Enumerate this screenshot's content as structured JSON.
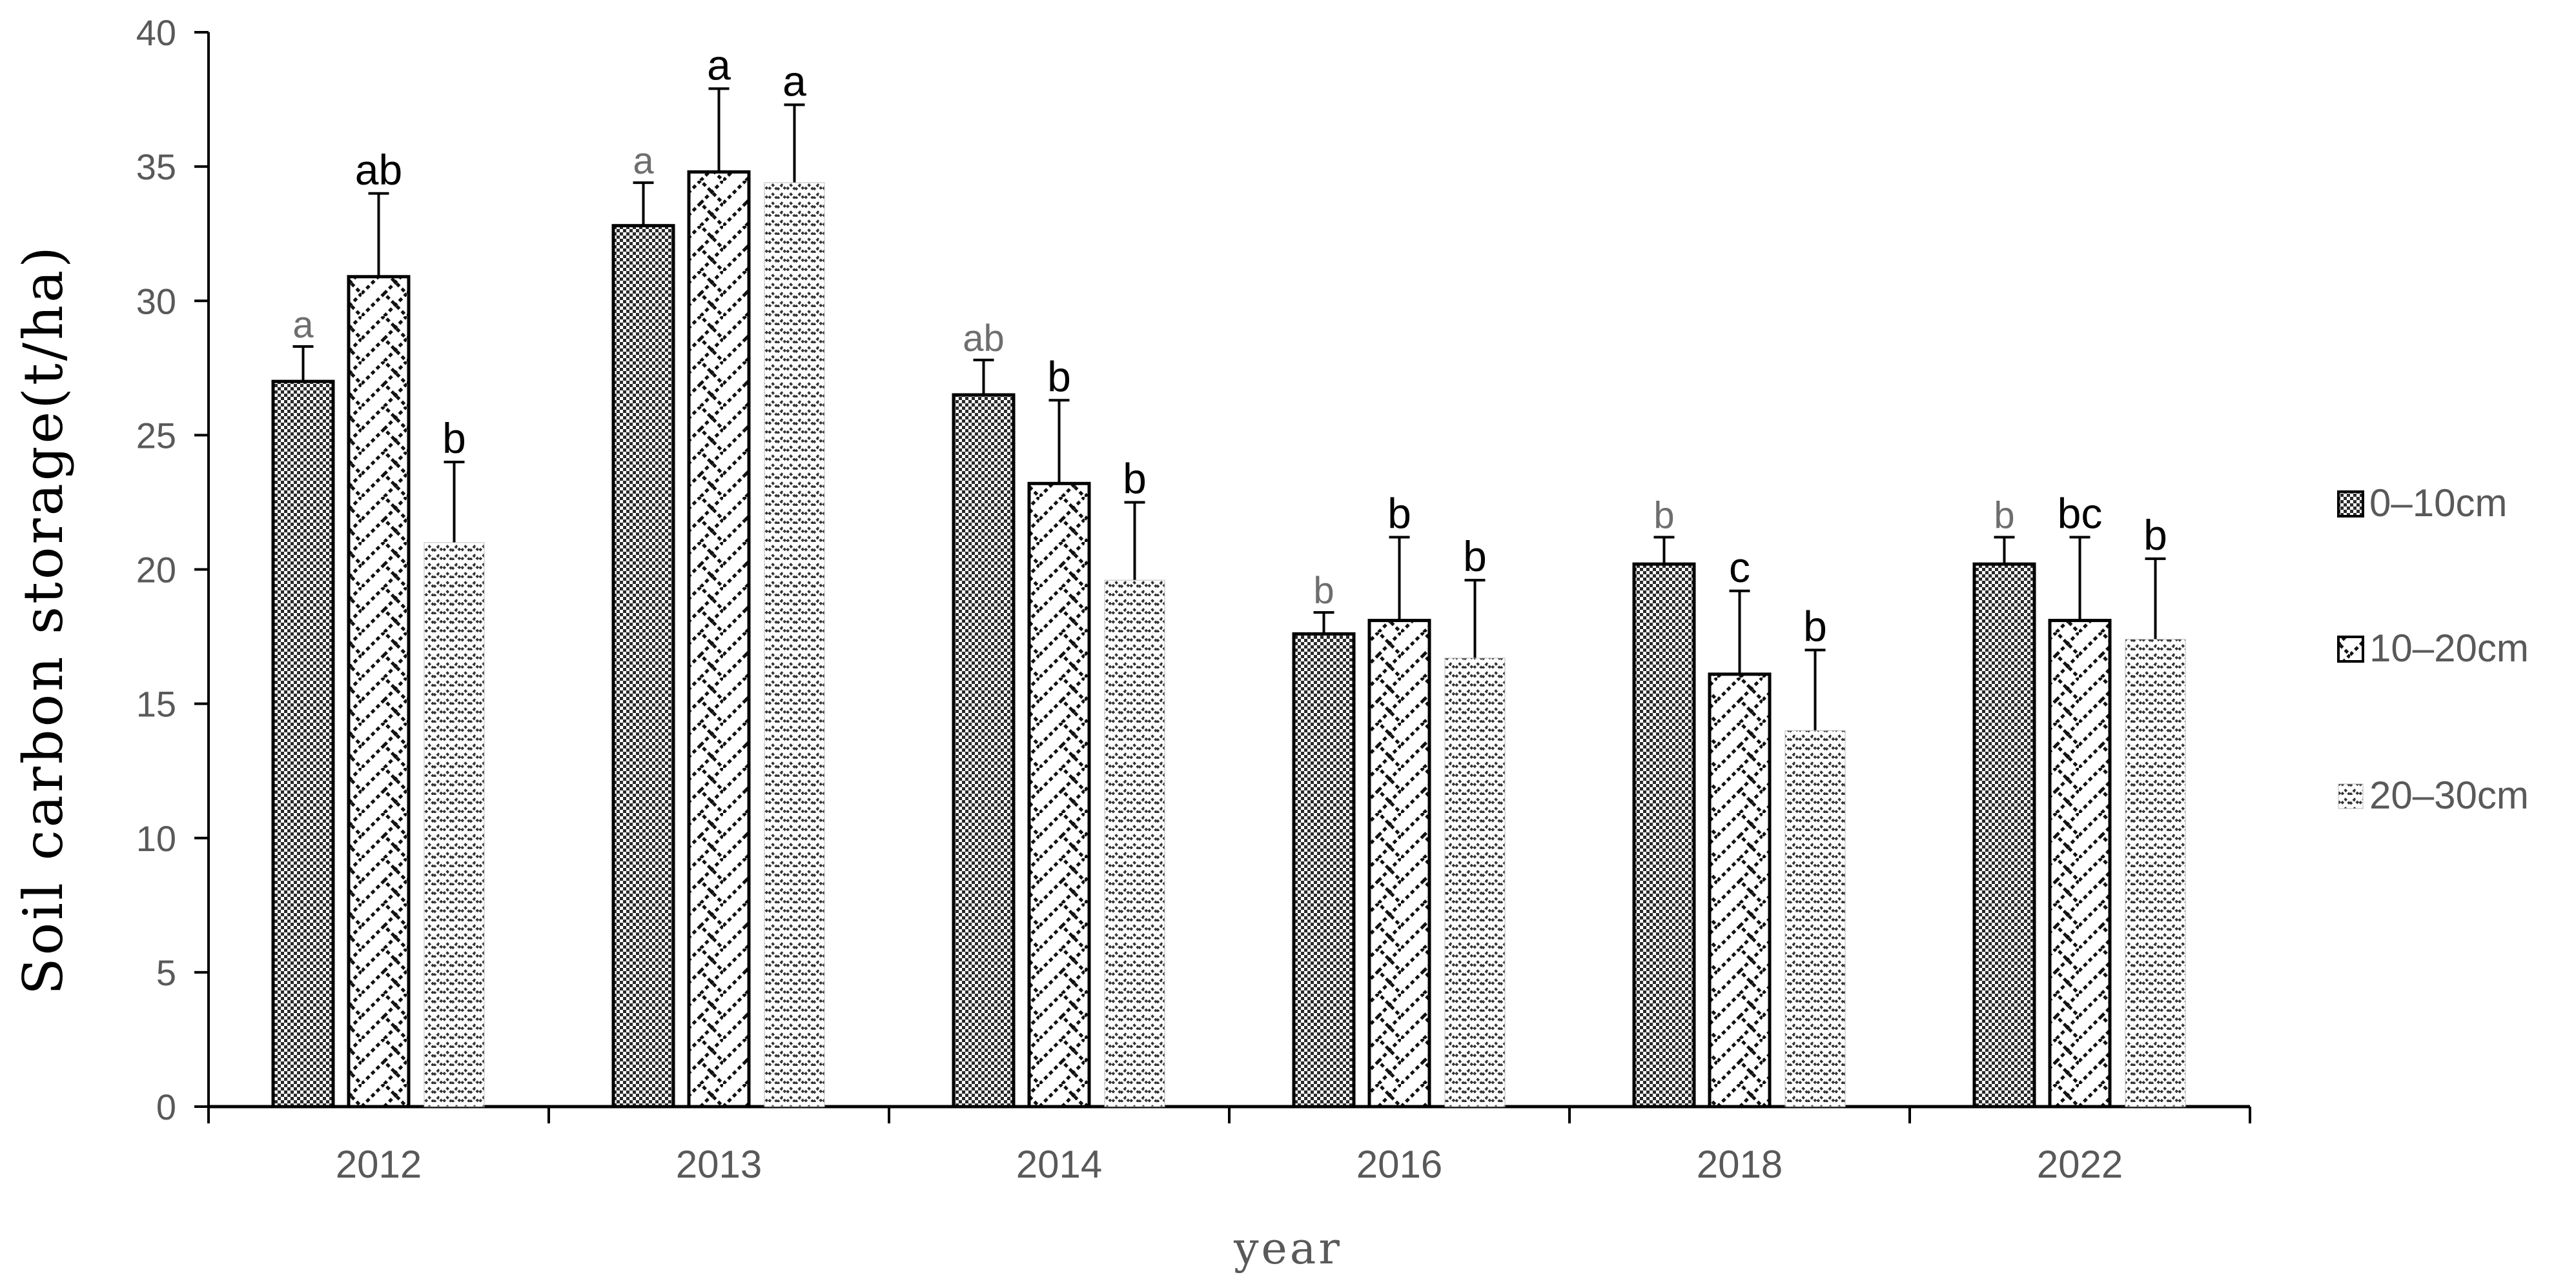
{
  "chart_data": {
    "type": "bar",
    "xlabel": "year",
    "ylabel": "Soil carbon storage(t/ha)",
    "ylim": [
      0,
      40
    ],
    "yticks": [
      0,
      5,
      10,
      15,
      20,
      25,
      30,
      35,
      40
    ],
    "grid": false,
    "legend_position": "right",
    "categories": [
      "2012",
      "2013",
      "2014",
      "2016",
      "2018",
      "2022"
    ],
    "series": [
      {
        "name": "0–10cm",
        "pattern": "dense-dots",
        "values": [
          27.0,
          32.8,
          26.5,
          17.6,
          20.2,
          20.2
        ],
        "errors": [
          1.3,
          1.6,
          1.3,
          0.8,
          1.0,
          1.0
        ],
        "labels": [
          "a",
          "a",
          "ab",
          "b",
          "b",
          "b"
        ]
      },
      {
        "name": "10–20cm",
        "pattern": "zigzag",
        "values": [
          30.9,
          34.8,
          23.2,
          18.1,
          16.1,
          18.1
        ],
        "errors": [
          3.1,
          3.1,
          3.1,
          3.1,
          3.1,
          3.1
        ],
        "labels": [
          "ab",
          "a",
          "b",
          "b",
          "c",
          "bc"
        ]
      },
      {
        "name": "20–30cm",
        "pattern": "herringbone",
        "values": [
          21.0,
          34.4,
          19.6,
          16.7,
          14.0,
          17.4
        ],
        "errors": [
          3.0,
          2.9,
          2.9,
          2.9,
          3.0,
          3.0
        ],
        "labels": [
          "b",
          "a",
          "b",
          "b",
          "b",
          "b"
        ]
      }
    ],
    "label_colors": [
      [
        "#6e6e6e",
        "#000000",
        "#000000"
      ],
      [
        "#6e6e6e",
        "#000000",
        "#000000"
      ],
      [
        "#6e6e6e",
        "#000000",
        "#000000"
      ],
      [
        "#6e6e6e",
        "#000000",
        "#000000"
      ],
      [
        "#6e6e6e",
        "#000000",
        "#000000"
      ],
      [
        "#6e6e6e",
        "#000000",
        "#000000"
      ]
    ]
  }
}
